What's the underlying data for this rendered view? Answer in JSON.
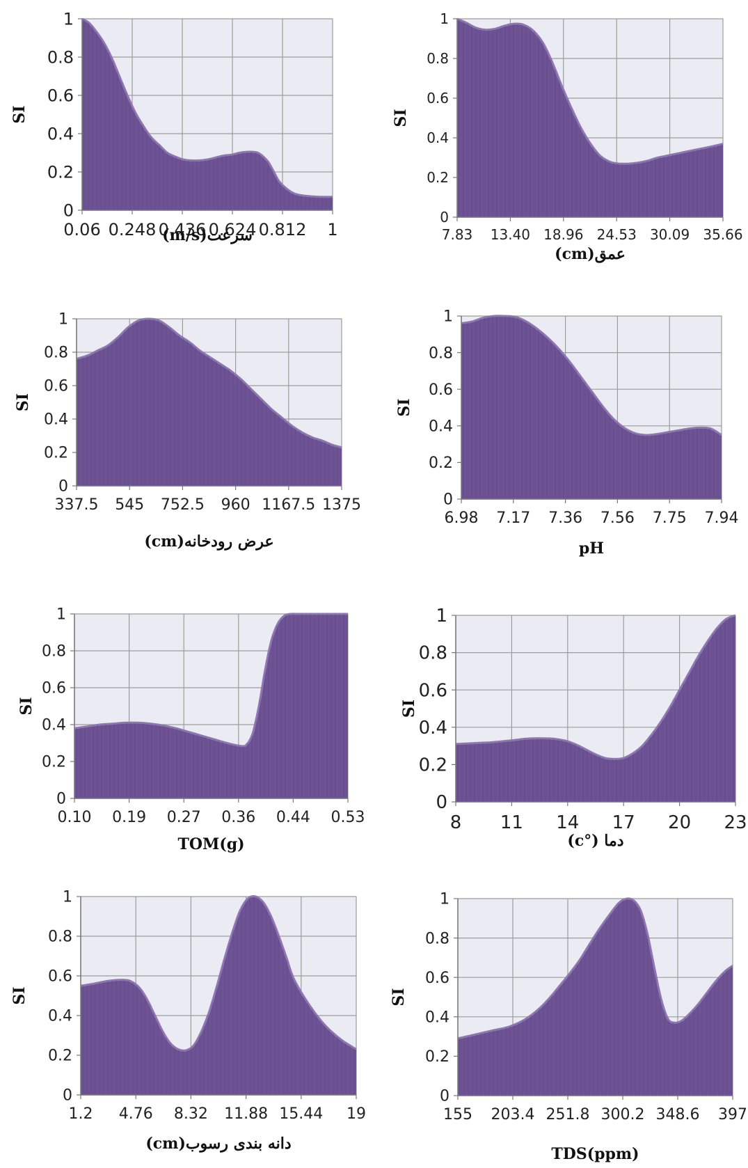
{
  "chart_data": [
    {
      "type": "area",
      "ylabel": "SI",
      "xlabel": "سرعت(m/s)",
      "x_ticks": [
        "0.06",
        "0.248",
        "0.436",
        "0.624",
        "0.812",
        "1"
      ],
      "y_ticks": [
        "0",
        "0.2",
        "0.4",
        "0.6",
        "0.8",
        "1"
      ],
      "xlim": [
        0.06,
        1
      ],
      "ylim": [
        0,
        1
      ],
      "grid": true,
      "fill_color": "#6d5393",
      "x": [
        0.06,
        0.085,
        0.11,
        0.14,
        0.17,
        0.2,
        0.23,
        0.26,
        0.29,
        0.32,
        0.35,
        0.38,
        0.41,
        0.44,
        0.47,
        0.5,
        0.53,
        0.56,
        0.59,
        0.62,
        0.65,
        0.68,
        0.7,
        0.72,
        0.74,
        0.76,
        0.78,
        0.8,
        0.83,
        0.86,
        0.9,
        0.95,
        1.0
      ],
      "y": [
        1.0,
        0.98,
        0.94,
        0.88,
        0.8,
        0.7,
        0.6,
        0.51,
        0.44,
        0.38,
        0.34,
        0.3,
        0.28,
        0.265,
        0.26,
        0.26,
        0.265,
        0.275,
        0.285,
        0.29,
        0.3,
        0.305,
        0.305,
        0.3,
        0.28,
        0.25,
        0.2,
        0.15,
        0.11,
        0.085,
        0.075,
        0.07,
        0.07
      ]
    },
    {
      "type": "area",
      "ylabel": "SI",
      "xlabel": "عمق(cm)",
      "x_ticks": [
        "7.83",
        "13.40",
        "18.96",
        "24.53",
        "30.09",
        "35.66"
      ],
      "y_ticks": [
        "0",
        "0.2",
        "0.4",
        "0.6",
        "0.8",
        "1"
      ],
      "xlim": [
        7.83,
        35.66
      ],
      "ylim": [
        0,
        1
      ],
      "grid": true,
      "fill_color": "#6d5393",
      "x": [
        7.83,
        8.8,
        9.8,
        10.8,
        11.8,
        12.8,
        13.8,
        14.8,
        15.8,
        16.8,
        17.8,
        18.8,
        19.8,
        20.8,
        21.8,
        22.8,
        23.8,
        24.8,
        25.8,
        26.8,
        27.8,
        28.8,
        29.8,
        30.8,
        31.8,
        32.8,
        33.8,
        34.8,
        35.66
      ],
      "y": [
        1.0,
        0.98,
        0.955,
        0.945,
        0.95,
        0.965,
        0.975,
        0.97,
        0.94,
        0.88,
        0.78,
        0.66,
        0.55,
        0.45,
        0.37,
        0.31,
        0.28,
        0.27,
        0.27,
        0.275,
        0.285,
        0.3,
        0.31,
        0.32,
        0.33,
        0.34,
        0.35,
        0.36,
        0.37
      ]
    },
    {
      "type": "area",
      "ylabel": "SI",
      "xlabel": "عرض رودخانه(cm)",
      "x_ticks": [
        "337.5",
        "545",
        "752.5",
        "960",
        "1167.5",
        "1375"
      ],
      "y_ticks": [
        "0",
        "0.2",
        "0.4",
        "0.6",
        "0.8",
        "1"
      ],
      "xlim": [
        337.5,
        1375
      ],
      "ylim": [
        0,
        1
      ],
      "grid": true,
      "fill_color": "#6d5393",
      "x": [
        337.5,
        380,
        420,
        460,
        500,
        540,
        580,
        620,
        660,
        700,
        740,
        780,
        820,
        860,
        900,
        940,
        980,
        1020,
        1060,
        1100,
        1140,
        1180,
        1220,
        1260,
        1300,
        1340,
        1375
      ],
      "y": [
        0.76,
        0.78,
        0.81,
        0.84,
        0.89,
        0.95,
        0.99,
        1.0,
        0.99,
        0.95,
        0.9,
        0.86,
        0.81,
        0.77,
        0.73,
        0.69,
        0.64,
        0.58,
        0.52,
        0.46,
        0.41,
        0.36,
        0.32,
        0.29,
        0.27,
        0.245,
        0.23
      ]
    },
    {
      "type": "area",
      "ylabel": "SI",
      "xlabel": "pH",
      "x_ticks": [
        "6.98",
        "7.17",
        "7.36",
        "7.56",
        "7.75",
        "7.94"
      ],
      "y_ticks": [
        "0",
        "0.2",
        "0.4",
        "0.6",
        "0.8",
        "1"
      ],
      "xlim": [
        6.98,
        7.94
      ],
      "ylim": [
        0,
        1
      ],
      "grid": true,
      "fill_color": "#6d5393",
      "x": [
        6.98,
        7.02,
        7.06,
        7.1,
        7.14,
        7.18,
        7.22,
        7.26,
        7.3,
        7.34,
        7.38,
        7.42,
        7.46,
        7.5,
        7.54,
        7.58,
        7.62,
        7.66,
        7.7,
        7.74,
        7.78,
        7.82,
        7.86,
        7.9,
        7.94
      ],
      "y": [
        0.96,
        0.97,
        0.99,
        1.0,
        1.0,
        0.995,
        0.97,
        0.93,
        0.88,
        0.82,
        0.75,
        0.67,
        0.59,
        0.51,
        0.44,
        0.39,
        0.36,
        0.35,
        0.355,
        0.365,
        0.375,
        0.385,
        0.39,
        0.385,
        0.35
      ]
    },
    {
      "type": "area",
      "ylabel": "SI",
      "xlabel": "TOM(g)",
      "x_ticks": [
        "0.10",
        "0.19",
        "0.27",
        "0.36",
        "0.44",
        "0.53"
      ],
      "y_ticks": [
        "0",
        "0.2",
        "0.4",
        "0.6",
        "0.8",
        "1"
      ],
      "xlim": [
        0.1,
        0.53
      ],
      "ylim": [
        0,
        1
      ],
      "grid": true,
      "fill_color": "#6d5393",
      "x": [
        0.1,
        0.12,
        0.14,
        0.16,
        0.18,
        0.2,
        0.22,
        0.24,
        0.26,
        0.28,
        0.3,
        0.32,
        0.34,
        0.36,
        0.37,
        0.38,
        0.39,
        0.4,
        0.41,
        0.42,
        0.43,
        0.44,
        0.45,
        0.47,
        0.5,
        0.53
      ],
      "y": [
        0.38,
        0.39,
        0.4,
        0.405,
        0.41,
        0.41,
        0.405,
        0.395,
        0.38,
        0.36,
        0.34,
        0.32,
        0.3,
        0.285,
        0.29,
        0.35,
        0.5,
        0.7,
        0.86,
        0.95,
        0.99,
        1.0,
        1.0,
        1.0,
        1.0,
        1.0
      ]
    },
    {
      "type": "area",
      "ylabel": "SI",
      "xlabel": "دما (°c)",
      "x_ticks": [
        "8",
        "11",
        "14",
        "17",
        "20",
        "23"
      ],
      "y_ticks": [
        "0",
        "0.2",
        "0.4",
        "0.6",
        "0.8",
        "1"
      ],
      "xlim": [
        8,
        23
      ],
      "ylim": [
        0,
        1
      ],
      "grid": true,
      "fill_color": "#6d5393",
      "x": [
        8,
        9,
        10,
        11,
        12,
        13,
        13.5,
        14,
        14.5,
        15,
        15.5,
        16,
        16.5,
        17,
        17.5,
        18,
        18.5,
        19,
        19.5,
        20,
        20.5,
        21,
        21.5,
        22,
        22.5,
        23
      ],
      "y": [
        0.31,
        0.315,
        0.32,
        0.33,
        0.34,
        0.34,
        0.335,
        0.325,
        0.305,
        0.28,
        0.255,
        0.235,
        0.23,
        0.235,
        0.26,
        0.3,
        0.36,
        0.43,
        0.51,
        0.6,
        0.69,
        0.78,
        0.86,
        0.93,
        0.98,
        1.0
      ]
    },
    {
      "type": "area",
      "ylabel": "SI",
      "xlabel": "دانه بندی رسوب(cm)",
      "x_ticks": [
        "1.2",
        "4.76",
        "8.32",
        "11.88",
        "15.44",
        "19"
      ],
      "y_ticks": [
        "0",
        "0.2",
        "0.4",
        "0.6",
        "0.8",
        "1"
      ],
      "xlim": [
        1.2,
        19
      ],
      "ylim": [
        0,
        1
      ],
      "grid": true,
      "fill_color": "#6d5393",
      "x": [
        1.2,
        2,
        3,
        4,
        4.5,
        5,
        5.5,
        6,
        6.5,
        7,
        7.5,
        8,
        8.5,
        9,
        9.5,
        10,
        10.5,
        11,
        11.5,
        12,
        12.5,
        13,
        13.5,
        14,
        14.5,
        15,
        16,
        17,
        18,
        19
      ],
      "y": [
        0.55,
        0.56,
        0.575,
        0.58,
        0.57,
        0.54,
        0.48,
        0.4,
        0.32,
        0.26,
        0.23,
        0.225,
        0.25,
        0.32,
        0.42,
        0.55,
        0.69,
        0.82,
        0.93,
        0.99,
        1.0,
        0.97,
        0.9,
        0.8,
        0.69,
        0.58,
        0.45,
        0.35,
        0.28,
        0.23
      ]
    },
    {
      "type": "area",
      "ylabel": "SI",
      "xlabel": "TDS(ppm)",
      "x_ticks": [
        "155",
        "203.4",
        "251.8",
        "300.2",
        "348.6",
        "397"
      ],
      "y_ticks": [
        "0",
        "0.2",
        "0.4",
        "0.6",
        "0.8",
        "1"
      ],
      "xlim": [
        155,
        397
      ],
      "ylim": [
        0,
        1
      ],
      "grid": true,
      "fill_color": "#6d5393",
      "x": [
        155,
        170,
        185,
        200,
        215,
        230,
        245,
        260,
        270,
        280,
        290,
        297,
        304,
        310,
        316,
        322,
        328,
        334,
        340,
        346,
        352,
        358,
        366,
        374,
        382,
        390,
        397
      ],
      "y": [
        0.29,
        0.31,
        0.33,
        0.35,
        0.39,
        0.46,
        0.56,
        0.67,
        0.76,
        0.85,
        0.93,
        0.98,
        1.0,
        0.99,
        0.94,
        0.82,
        0.65,
        0.49,
        0.39,
        0.37,
        0.38,
        0.41,
        0.46,
        0.52,
        0.58,
        0.63,
        0.66
      ]
    }
  ]
}
